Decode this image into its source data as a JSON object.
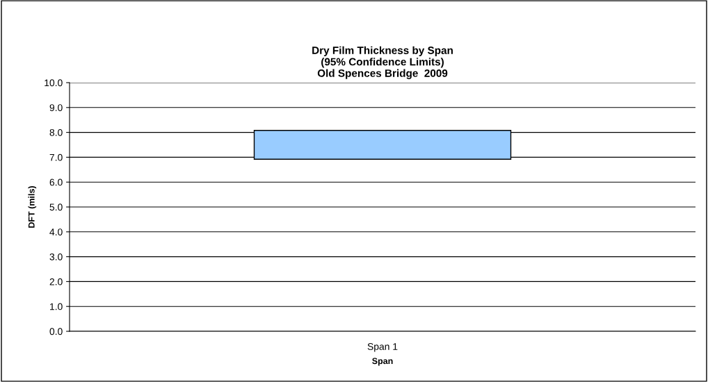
{
  "chart_data": {
    "type": "bar",
    "title": "Dry Film Thickness by Span\n(95% Confidence Limits)\nOld Spences Bridge  2009",
    "xlabel": "Span",
    "ylabel": "DFT (mils)",
    "categories": [
      "Span 1"
    ],
    "series": [
      {
        "color": "#99ccff",
        "values": [
          1.16
        ],
        "base": [
          6.92
        ]
      }
    ],
    "ylim": [
      0,
      10
    ],
    "yticks": [
      {
        "value": 0,
        "label": "0.0"
      },
      {
        "value": 1,
        "label": "1.0"
      },
      {
        "value": 2,
        "label": "2.0"
      },
      {
        "value": 3,
        "label": "3.0"
      },
      {
        "value": 4,
        "label": "4.0"
      },
      {
        "value": 5,
        "label": "5.0"
      },
      {
        "value": 6,
        "label": "6.0"
      },
      {
        "value": 7,
        "label": "7.0"
      },
      {
        "value": 8,
        "label": "8.0"
      },
      {
        "value": 9,
        "label": "9.0"
      },
      {
        "value": 10,
        "label": "10.0"
      }
    ],
    "grid": "y",
    "legend": false
  }
}
